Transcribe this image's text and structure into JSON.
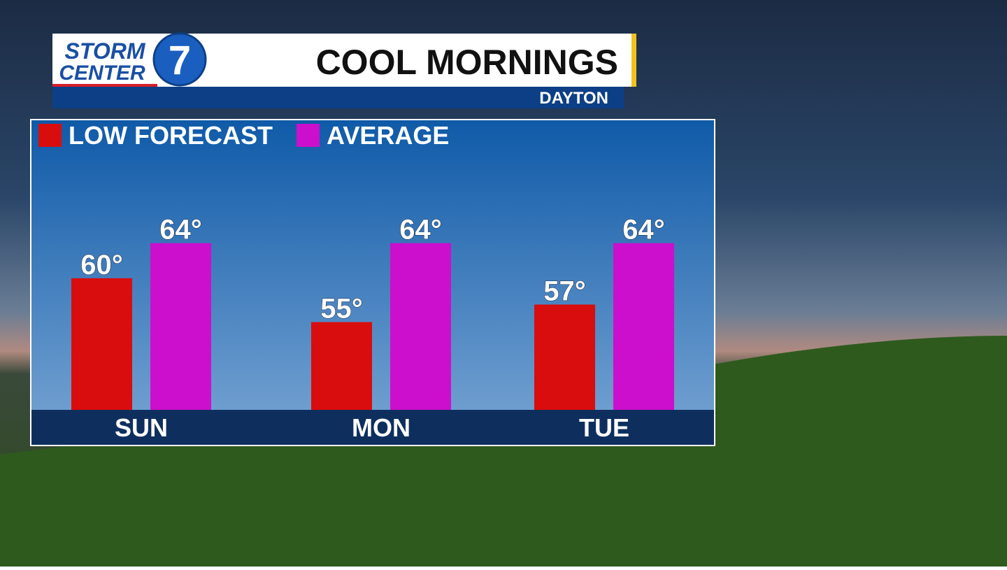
{
  "header": {
    "logo_top": "STORM",
    "logo_bottom": "CENTER",
    "logo_number": "7",
    "title": "COOL MORNINGS",
    "location": "DAYTON"
  },
  "chart_data": {
    "type": "bar",
    "categories": [
      "SUN",
      "MON",
      "TUE"
    ],
    "series": [
      {
        "name": "LOW FORECAST",
        "color": "#d90d0d",
        "values": [
          60,
          55,
          57
        ],
        "value_labels": [
          "60°",
          "55°",
          "57°"
        ]
      },
      {
        "name": "AVERAGE",
        "color": "#cc0fcc",
        "values": [
          64,
          64,
          64
        ],
        "value_labels": [
          "64°",
          "64°",
          "64°"
        ]
      }
    ],
    "ylim": [
      45,
      78
    ]
  }
}
